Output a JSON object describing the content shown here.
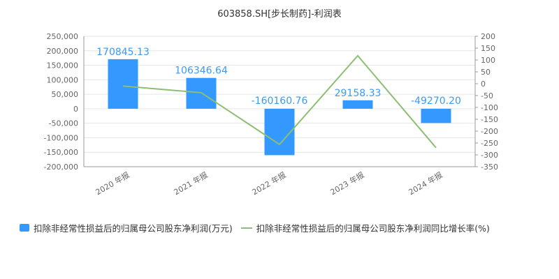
{
  "chart_data": {
    "type": "bar+line",
    "title": "603858.SH[步长制药]-利润表",
    "categories": [
      "2020 年报",
      "2021 年报",
      "2022 年报",
      "2023 年报",
      "2024 年报"
    ],
    "series": [
      {
        "name": "扣除非经常性损益后的归属母公司股东净利润(万元)",
        "type": "bar",
        "axis": "left",
        "color": "#3399ff",
        "values": [
          170845.13,
          106346.64,
          -160160.76,
          29158.33,
          -49270.2
        ],
        "labels": [
          "170845.13",
          "106346.64",
          "-160160.76",
          "29158.33",
          "-49270.20"
        ]
      },
      {
        "name": "扣除非经常性损益后的归属母公司股东净利润同比增长率(%)",
        "type": "line",
        "axis": "right",
        "color": "#8cbf73",
        "values": [
          -10,
          -38,
          -256,
          118,
          -270
        ]
      }
    ],
    "y_left": {
      "ylim": [
        -200000,
        250000
      ],
      "ticks": [
        250000,
        200000,
        150000,
        100000,
        50000,
        0,
        -50000,
        -100000,
        -150000,
        -200000
      ],
      "tick_labels": [
        "250,000",
        "200,000",
        "150,000",
        "100,000",
        "50,000",
        "0",
        "-50,000",
        "-100,000",
        "-150,000",
        "-200,000"
      ]
    },
    "y_right": {
      "ylim": [
        -350,
        200
      ],
      "ticks": [
        200,
        150,
        100,
        50,
        0,
        -50,
        -100,
        -150,
        -200,
        -250,
        -300,
        -350
      ],
      "tick_labels": [
        "200",
        "150",
        "100",
        "50",
        "0",
        "-50",
        "-100",
        "-150",
        "-200",
        "-250",
        "-300",
        "-350"
      ]
    },
    "grid": true,
    "legend_position": "bottom"
  }
}
